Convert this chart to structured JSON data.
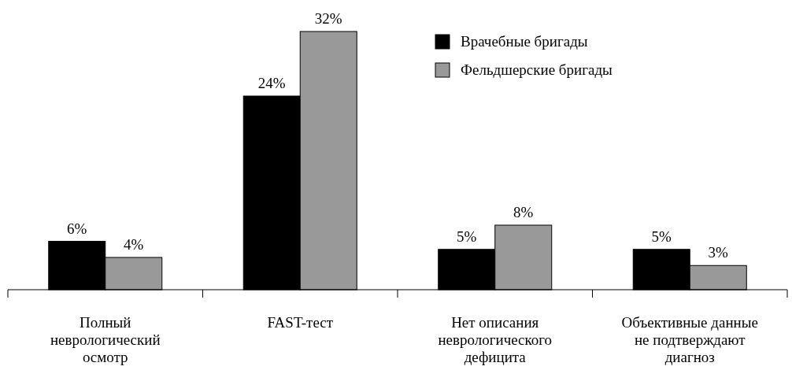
{
  "chart_data": {
    "type": "bar",
    "categories": [
      "Полный неврологический осмотр",
      "FAST-тест",
      "Нет описания неврологического дефицита",
      "Объективные данные не подтверждают диагноз"
    ],
    "series": [
      {
        "name": "Врачебные бригады",
        "color": "#000000",
        "values": [
          6,
          24,
          5,
          5
        ],
        "value_labels": [
          "6%",
          "24%",
          "5%",
          "5%"
        ]
      },
      {
        "name": "Фельдшерские бригады",
        "color": "#999999",
        "values": [
          4,
          32,
          8,
          3
        ],
        "value_labels": [
          "4%",
          "32%",
          "8%",
          "3%"
        ]
      }
    ],
    "ylim": [
      0,
      32
    ],
    "tick_labels": "x",
    "legend": "top right",
    "grid": false
  }
}
